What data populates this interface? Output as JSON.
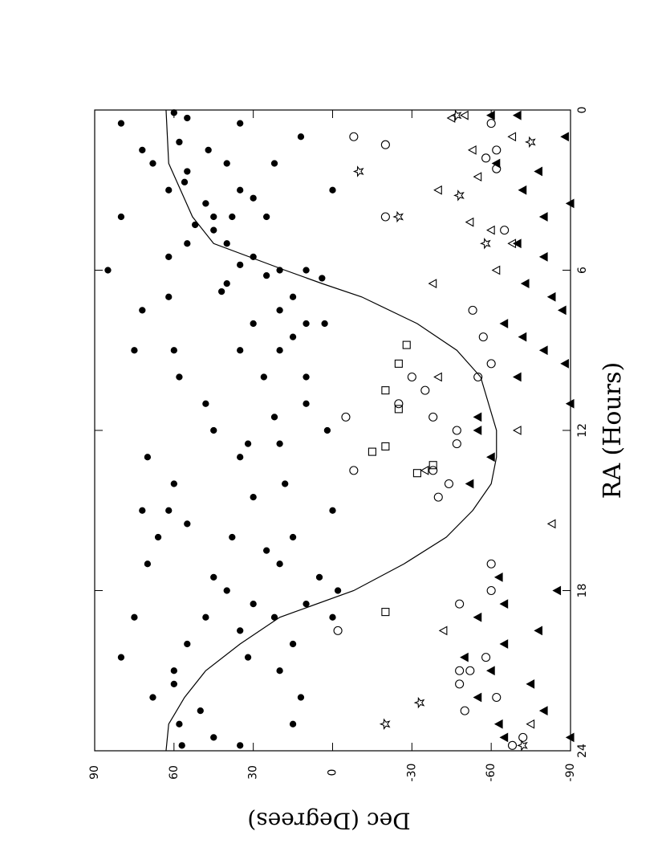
{
  "chart_data": {
    "type": "scatter",
    "x_label": "RA (Hours)",
    "y_label": "Dec (Degrees)",
    "xlim": [
      24,
      0
    ],
    "xticks": [
      0,
      6,
      12,
      18,
      24
    ],
    "ylim": [
      -90,
      90
    ],
    "yticks": [
      -90,
      -60,
      -30,
      0,
      30,
      60,
      90
    ],
    "series": [
      {
        "marker": "line",
        "color": "#000000",
        "x": [
          0,
          2,
          4,
          5,
          6,
          6.5,
          7,
          8,
          9,
          10,
          12,
          13,
          14,
          15,
          16,
          17,
          18,
          19,
          20,
          21,
          22,
          23,
          24
        ],
        "values": [
          63,
          62,
          53,
          45,
          18,
          4,
          -11,
          -32,
          -47,
          -56,
          -62,
          -62,
          -60,
          -53,
          -43,
          -27,
          -8,
          20,
          35,
          48,
          56,
          62,
          63
        ]
      },
      {
        "marker": "circle",
        "filled": true,
        "color": "#000000",
        "x": [
          0.1,
          0.5,
          0.3,
          0.5,
          1,
          1.2,
          1.5,
          1.5,
          2,
          2,
          2,
          2.3,
          2.7,
          3,
          3,
          3,
          3.3,
          3.5,
          4,
          4,
          4,
          4,
          4.3,
          4.5,
          5,
          5,
          5.5,
          5.5,
          5.8,
          6,
          6,
          6,
          6.2,
          6.3,
          6.5,
          6.8,
          7,
          7,
          7.5,
          7.5,
          8,
          8,
          8,
          8.5,
          9,
          9,
          9,
          9,
          10,
          10,
          10,
          11,
          11,
          11.5,
          12,
          12,
          12.5,
          12.5,
          13,
          13,
          14,
          14,
          14.5,
          15,
          15,
          15,
          15.5,
          16,
          16,
          16,
          16.5,
          17,
          17,
          17.5,
          17.5,
          18,
          18,
          18.5,
          18.5,
          19,
          19,
          19,
          19,
          19.5,
          20,
          20,
          20.5,
          20.5,
          21,
          21,
          21.5,
          22,
          22,
          22.5,
          23,
          23,
          23.5,
          23.8,
          23.8
        ],
        "values": [
          60,
          80,
          55,
          35,
          12,
          58,
          72,
          47,
          68,
          40,
          22,
          55,
          56,
          62,
          35,
          0,
          30,
          48,
          80,
          45,
          38,
          25,
          52,
          45,
          55,
          40,
          62,
          30,
          35,
          85,
          20,
          10,
          25,
          4,
          40,
          42,
          62,
          15,
          72,
          20,
          30,
          10,
          3,
          15,
          75,
          60,
          35,
          20,
          58,
          26,
          10,
          48,
          10,
          22,
          45,
          2,
          32,
          20,
          70,
          35,
          60,
          18,
          30,
          72,
          62,
          0,
          55,
          66,
          38,
          15,
          25,
          70,
          20,
          45,
          5,
          40,
          -2,
          30,
          10,
          75,
          48,
          22,
          0,
          35,
          55,
          15,
          80,
          32,
          60,
          20,
          60,
          68,
          12,
          50,
          58,
          15,
          45,
          57,
          35
        ]
      },
      {
        "marker": "circle",
        "filled": false,
        "color": "#000000",
        "x": [
          0.5,
          1,
          1.3,
          1.5,
          1.8,
          2.2,
          4,
          4.5,
          7.5,
          8.5,
          9.5,
          10,
          10,
          10.5,
          11,
          11.5,
          11.5,
          12,
          12.5,
          13.5,
          13.5,
          14,
          14.5,
          17,
          18,
          18.5,
          19.5,
          20.5,
          21,
          21,
          21.5,
          22,
          22.5,
          23.5,
          23.8
        ],
        "values": [
          -60,
          -8,
          -20,
          -62,
          -58,
          -62,
          -20,
          -65,
          -53,
          -57,
          -60,
          -55,
          -30,
          -35,
          -25,
          -5,
          -38,
          -47,
          -47,
          -8,
          -38,
          -44,
          -40,
          -60,
          -60,
          -48,
          -2,
          -58,
          -48,
          -52,
          -48,
          -62,
          -50,
          -72,
          -68
        ]
      },
      {
        "marker": "triangle",
        "filled": false,
        "color": "#000000",
        "x": [
          0.2,
          0.3,
          1,
          1.5,
          2.5,
          3,
          4.2,
          4.5,
          5,
          6,
          6.5,
          10,
          12,
          13.5,
          15.5,
          19.5,
          23
        ],
        "values": [
          -50,
          -45,
          -68,
          -53,
          -55,
          -40,
          -52,
          -60,
          -68,
          -62,
          -38,
          -40,
          -70,
          -35,
          -83,
          -42,
          -75
        ]
      },
      {
        "marker": "triangle",
        "filled": true,
        "color": "#000000",
        "x": [
          0.2,
          0.2,
          1,
          2,
          2.3,
          3,
          3.5,
          4,
          5,
          5.5,
          6.5,
          7,
          7.5,
          8,
          8.5,
          9,
          9.5,
          10,
          11,
          11.5,
          12,
          13,
          14,
          17.5,
          18,
          18.5,
          19,
          19.5,
          20,
          20.5,
          21,
          21.5,
          22,
          22.5,
          23,
          23.5,
          23.5
        ],
        "values": [
          -60,
          -70,
          -88,
          -62,
          -78,
          -72,
          -90,
          -80,
          -70,
          -80,
          -73,
          -83,
          -87,
          -65,
          -72,
          -80,
          -88,
          -70,
          -90,
          -55,
          -55,
          -60,
          -52,
          -63,
          -85,
          -65,
          -55,
          -78,
          -65,
          -50,
          -60,
          -75,
          -55,
          -80,
          -63,
          -65,
          -90
        ]
      },
      {
        "marker": "square",
        "filled": false,
        "color": "#000000",
        "x": [
          8.8,
          9.5,
          10.5,
          11.2,
          12.6,
          12.8,
          13.3,
          13.6,
          18.8
        ],
        "values": [
          -28,
          -25,
          -20,
          -25,
          -20,
          -15,
          -38,
          -32,
          -20
        ]
      },
      {
        "marker": "star",
        "filled": false,
        "color": "#000000",
        "x": [
          0.2,
          1.2,
          2.3,
          3.2,
          4,
          5,
          23,
          23.8,
          22.2
        ],
        "values": [
          -47,
          -75,
          -10,
          -48,
          -25,
          -58,
          -20,
          -72,
          -33
        ]
      }
    ]
  }
}
